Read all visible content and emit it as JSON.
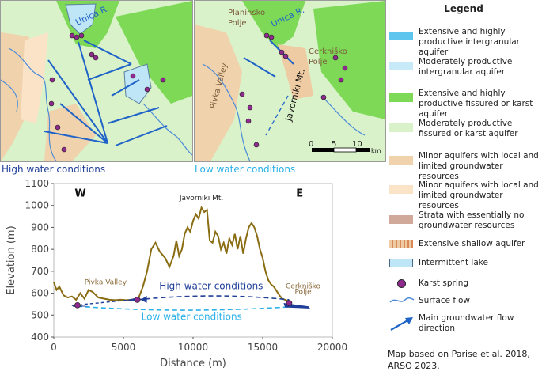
{
  "maps": {
    "left": {
      "labels": {
        "river": "Unica R."
      },
      "caption": "High water conditions"
    },
    "right": {
      "labels": {
        "planinsko": "Planinsko Polje",
        "river": "Unica R.",
        "cerknisko": "Cerkniško Polje",
        "pivka": "Pivka Valley",
        "javorniki": "Javorniki Mt."
      },
      "scale": {
        "ticks": [
          "0",
          "5",
          "10"
        ],
        "unit": "km"
      },
      "caption": "Low water conditions"
    }
  },
  "legend": {
    "title": "Legend",
    "items": [
      {
        "label": "Extensive and highly productive intergranular aquifer",
        "color": "#5ec5ee"
      },
      {
        "label": "Moderately productive intergranular aquifer",
        "color": "#c8e9f8"
      },
      {
        "label": "Extensive and highly productive fissured or karst aquifer",
        "color": "#7ed957"
      },
      {
        "label": "Moderately productive fissured or karst aquifer",
        "color": "#d9f2c9"
      },
      {
        "label": "Minor aquifers with local and limited groundwater resources",
        "color": "#f0d2ad"
      },
      {
        "label": "Minor aquifers with local and limited groundwater resources",
        "color": "#fbe3c8"
      },
      {
        "label": "Strata with essentially no groundwater resources",
        "color": "#d1a99a"
      },
      {
        "label": "Extensive shallow aquifer",
        "color": "#efcba3"
      },
      {
        "label": "Intermittent lake",
        "color": "#bfe6f6"
      },
      {
        "label": "Karst spring",
        "color": "#8e2a8e"
      },
      {
        "label": "Surface flow",
        "color": "#4a8ad9"
      },
      {
        "label": "Main groundwater flow direction",
        "color": "#1f63c9"
      }
    ]
  },
  "note": {
    "line1": "Map based on Parise et al. 2018,",
    "line2": "ARSO 2023."
  },
  "chart_data": {
    "type": "line",
    "title": "",
    "xlabel": "Distance (m)",
    "ylabel": "Elevation (m)",
    "xlim": [
      0,
      20000
    ],
    "ylim": [
      400,
      1100
    ],
    "xticks": [
      0,
      5000,
      10000,
      15000,
      20000
    ],
    "yticks": [
      400,
      500,
      600,
      700,
      800,
      900,
      1000,
      1100
    ],
    "series": [
      {
        "color": "#8a6d12",
        "x": [
          0,
          200,
          400,
          700,
          1000,
          1300,
          1600,
          1900,
          2200,
          2500,
          2800,
          3200,
          3600,
          4000,
          4400,
          4800,
          5200,
          5600,
          5900,
          6100,
          6400,
          6700,
          7000,
          7300,
          7600,
          8000,
          8300,
          8600,
          8800,
          9000,
          9200,
          9400,
          9600,
          9800,
          10000,
          10200,
          10400,
          10600,
          10800,
          11000,
          11200,
          11400,
          11600,
          11800,
          12000,
          12200,
          12400,
          12600,
          12800,
          13000,
          13200,
          13400,
          13600,
          13800,
          14000,
          14200,
          14400,
          14600,
          14800,
          15000,
          15200,
          15400,
          15600,
          15800,
          16000,
          16200,
          16400,
          16600,
          16800,
          17000
        ],
        "y": [
          650,
          615,
          630,
          590,
          580,
          585,
          570,
          600,
          575,
          615,
          605,
          580,
          575,
          570,
          568,
          570,
          568,
          570,
          575,
          580,
          630,
          700,
          800,
          830,
          790,
          760,
          720,
          770,
          840,
          770,
          800,
          870,
          900,
          880,
          930,
          960,
          940,
          990,
          970,
          980,
          840,
          830,
          880,
          860,
          800,
          830,
          780,
          850,
          820,
          870,
          800,
          860,
          780,
          850,
          900,
          920,
          900,
          860,
          800,
          760,
          700,
          660,
          640,
          630,
          610,
          590,
          575,
          570,
          565,
          560
        ]
      }
    ],
    "text": {
      "west": "W",
      "east": "E",
      "javorniki": "Javorniki Mt.",
      "pivka": "Pivka Valley",
      "cerknisko": "Cerkniško Polje",
      "high": "High water conditions",
      "low": "Low water conditions"
    },
    "springs": [
      {
        "x": 1700,
        "y": 545
      },
      {
        "x": 6000,
        "y": 570
      },
      {
        "x": 16900,
        "y": 555
      }
    ],
    "flow_paths": [
      {
        "name": "High water conditions",
        "x": [
          6000,
          11500,
          16900
        ],
        "y": [
          570,
          605,
          570
        ],
        "color": "#1f3f99"
      },
      {
        "name": "Low water conditions",
        "x": [
          1700,
          9500,
          17500
        ],
        "y": [
          540,
          505,
          540
        ],
        "color": "#29b1e8"
      }
    ]
  }
}
